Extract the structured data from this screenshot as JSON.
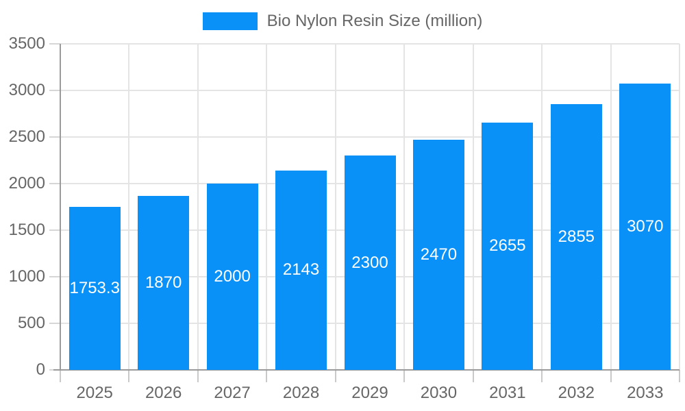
{
  "chart_data": {
    "type": "bar",
    "title": "",
    "categories": [
      "2025",
      "2026",
      "2027",
      "2028",
      "2029",
      "2030",
      "2031",
      "2032",
      "2033"
    ],
    "series": [
      {
        "name": "Bio Nylon Resin Size (million)",
        "values": [
          1753.3,
          1870,
          2000,
          2143,
          2300,
          2470,
          2655,
          2855,
          3070
        ]
      }
    ],
    "value_labels": [
      "1753.3",
      "1870",
      "2000",
      "2143",
      "2300",
      "2470",
      "2655",
      "2855",
      "3070"
    ],
    "xlabel": "",
    "ylabel": "",
    "ylim": [
      0,
      3500
    ],
    "y_ticks": [
      0,
      500,
      1000,
      1500,
      2000,
      2500,
      3000,
      3500
    ],
    "grid": "on",
    "legend_position": "top-center",
    "colors": {
      "bar": "#0991f7",
      "value_label": "#ffffff",
      "axis_text": "#666666",
      "gridline": "#e4e4e4",
      "axis_line": "#9a9a9a"
    }
  },
  "legend": {
    "label": "Bio Nylon Resin Size (million)"
  }
}
